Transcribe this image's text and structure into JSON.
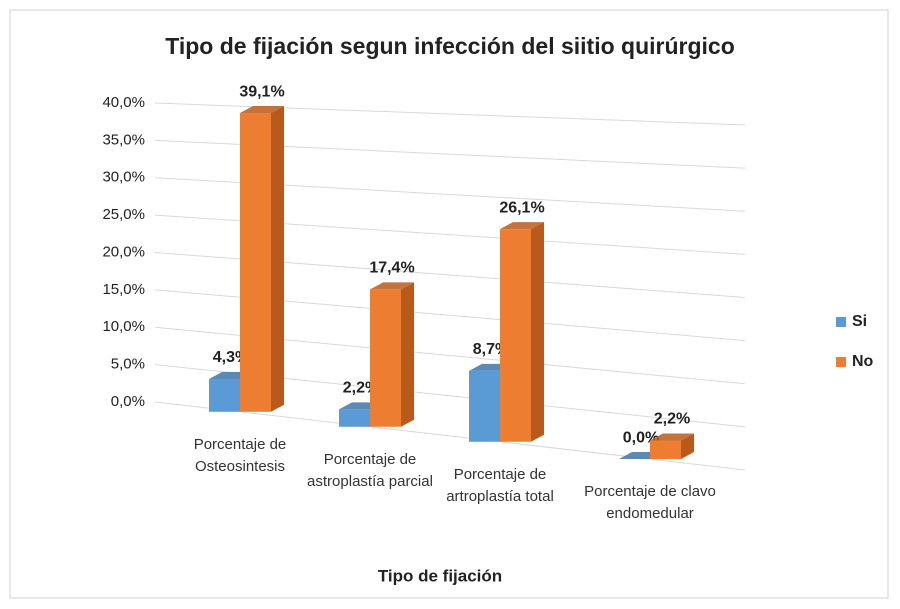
{
  "chart_data": {
    "type": "bar3d",
    "title": "Tipo de fijación segun infección del siitio quirúrgico",
    "x_label": "Tipo de fijación",
    "categories": [
      "Porcentaje de Osteosintesis",
      "Porcentaje de astroplastía parcial",
      "Porcentaje de artroplastía total",
      "Porcentaje de clavo endomedular"
    ],
    "series": [
      {
        "name": "Si",
        "color": "#5b9bd5",
        "side_color": "#3f76aa",
        "values": [
          4.3,
          2.2,
          8.7,
          0.0
        ],
        "value_labels": [
          "4,3%",
          "2,2%",
          "8,7%",
          "0,0%"
        ]
      },
      {
        "name": "No",
        "color": "#ed7d31",
        "side_color": "#b85a1c",
        "values": [
          39.1,
          17.4,
          26.1,
          2.2
        ],
        "value_labels": [
          "39,1%",
          "17,4%",
          "26,1%",
          "2,2%"
        ]
      }
    ],
    "ylim": [
      0,
      40
    ],
    "yticks": [
      {
        "value": 0,
        "label": "0,0%"
      },
      {
        "value": 5,
        "label": "5,0%"
      },
      {
        "value": 10,
        "label": "10,0%"
      },
      {
        "value": 15,
        "label": "15,0%"
      },
      {
        "value": 20,
        "label": "20,0%"
      },
      {
        "value": 25,
        "label": "25,0%"
      },
      {
        "value": 30,
        "label": "30,0%"
      },
      {
        "value": 35,
        "label": "35,0%"
      },
      {
        "value": 40,
        "label": "40,0%"
      }
    ],
    "grid": true,
    "legend": "right"
  }
}
